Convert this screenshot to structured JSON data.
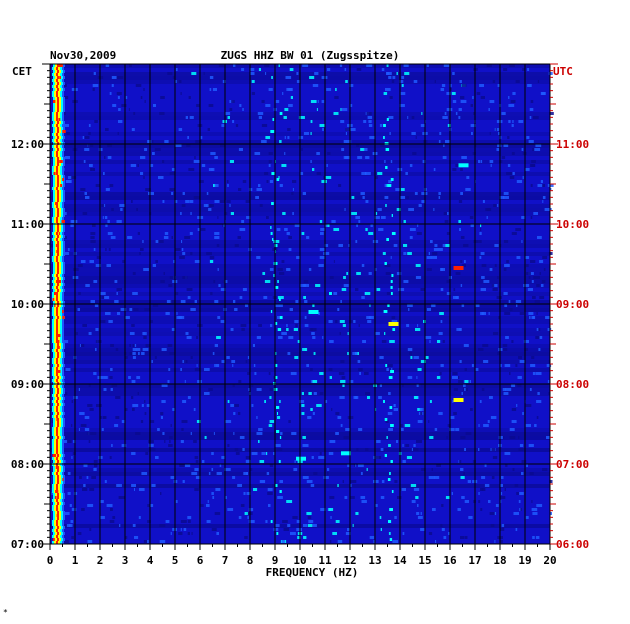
{
  "header": {
    "date": "Nov30,2009",
    "station": "ZUGS HHZ BW 01 (Zugsspitze)",
    "left_zone": "CET",
    "right_zone": "UTC"
  },
  "footer": {
    "mark": "*"
  },
  "chart_data": {
    "type": "heatmap",
    "title": "ZUGS HHZ BW 01 (Zugsspitze)",
    "xlabel": "FREQUENCY (HZ)",
    "x_ticks": [
      "0",
      "1",
      "2",
      "3",
      "4",
      "5",
      "6",
      "7",
      "8",
      "9",
      "10",
      "11",
      "12",
      "13",
      "14",
      "15",
      "16",
      "17",
      "18",
      "19",
      "20"
    ],
    "xlim": [
      0,
      20
    ],
    "y_ticks_left": [
      "07:00",
      "08:00",
      "09:00",
      "10:00",
      "11:00",
      "12:00"
    ],
    "y_ticks_right": [
      "06:00",
      "07:00",
      "08:00",
      "09:00",
      "10:00",
      "11:00"
    ],
    "y_range_cet": [
      "07:00",
      "13:00"
    ],
    "colors": {
      "background": "#1010c8",
      "low": "#0a0a90",
      "mid": "#1e5aff",
      "high": "#00ffff",
      "peak": "#ffff00",
      "max": "#ff2000",
      "right_axis": "#cc0000"
    },
    "hotspots": [
      {
        "freq": 0.3,
        "time": "07:00-13:00",
        "level": "max"
      },
      {
        "freq": 9,
        "time": "07:00-13:00",
        "level": "high"
      },
      {
        "freq": 13.5,
        "time": "07:00-13:00",
        "level": "high"
      },
      {
        "freq": 16.3,
        "time": "10:27",
        "level": "max"
      },
      {
        "freq": 16.3,
        "time": "08:48",
        "level": "peak"
      },
      {
        "freq": 10,
        "time": "08:04",
        "level": "high"
      },
      {
        "freq": 11.8,
        "time": "08:08",
        "level": "high"
      },
      {
        "freq": 10.5,
        "time": "09:54",
        "level": "high"
      },
      {
        "freq": 13.7,
        "time": "09:45",
        "level": "peak"
      },
      {
        "freq": 16.5,
        "time": "11:44",
        "level": "high"
      }
    ]
  }
}
